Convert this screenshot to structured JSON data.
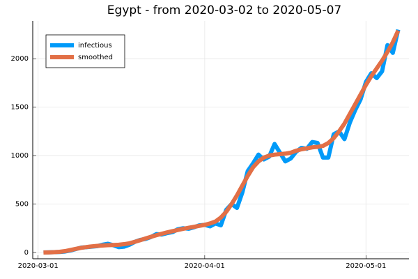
{
  "chart_data": {
    "type": "line",
    "title": "Egypt - from 2020-03-02 to 2020-05-07",
    "x": [
      "2020-03-02",
      "2020-03-03",
      "2020-03-04",
      "2020-03-05",
      "2020-03-06",
      "2020-03-07",
      "2020-03-08",
      "2020-03-09",
      "2020-03-10",
      "2020-03-11",
      "2020-03-12",
      "2020-03-13",
      "2020-03-14",
      "2020-03-15",
      "2020-03-16",
      "2020-03-17",
      "2020-03-18",
      "2020-03-19",
      "2020-03-20",
      "2020-03-21",
      "2020-03-22",
      "2020-03-23",
      "2020-03-24",
      "2020-03-25",
      "2020-03-26",
      "2020-03-27",
      "2020-03-28",
      "2020-03-29",
      "2020-03-30",
      "2020-03-31",
      "2020-04-01",
      "2020-04-02",
      "2020-04-03",
      "2020-04-04",
      "2020-04-05",
      "2020-04-06",
      "2020-04-07",
      "2020-04-08",
      "2020-04-09",
      "2020-04-10",
      "2020-04-11",
      "2020-04-12",
      "2020-04-13",
      "2020-04-14",
      "2020-04-15",
      "2020-04-16",
      "2020-04-17",
      "2020-04-18",
      "2020-04-19",
      "2020-04-20",
      "2020-04-21",
      "2020-04-22",
      "2020-04-23",
      "2020-04-24",
      "2020-04-25",
      "2020-04-26",
      "2020-04-27",
      "2020-04-28",
      "2020-04-29",
      "2020-04-30",
      "2020-05-01",
      "2020-05-02",
      "2020-05-03",
      "2020-05-04",
      "2020-05-05",
      "2020-05-06",
      "2020-05-07"
    ],
    "series": [
      {
        "name": "infectious",
        "color": "#009af9",
        "values": [
          0,
          2,
          3,
          5,
          10,
          20,
          35,
          50,
          55,
          60,
          65,
          80,
          90,
          75,
          55,
          60,
          80,
          110,
          130,
          140,
          160,
          190,
          185,
          200,
          210,
          240,
          250,
          245,
          260,
          280,
          285,
          270,
          300,
          280,
          440,
          500,
          460,
          620,
          840,
          920,
          1010,
          960,
          990,
          1120,
          1030,
          940,
          970,
          1040,
          1080,
          1070,
          1140,
          1130,
          980,
          980,
          1220,
          1250,
          1170,
          1340,
          1470,
          1580,
          1760,
          1850,
          1800,
          1870,
          2140,
          2060,
          2300
        ]
      },
      {
        "name": "smoothed",
        "color": "#e26f46",
        "values": [
          0,
          1,
          3,
          7,
          14,
          25,
          37,
          48,
          56,
          63,
          68,
          72,
          75,
          77,
          80,
          86,
          95,
          110,
          127,
          145,
          162,
          178,
          193,
          207,
          220,
          232,
          244,
          255,
          265,
          275,
          285,
          300,
          320,
          360,
          420,
          500,
          590,
          690,
          790,
          880,
          940,
          980,
          1000,
          1010,
          1015,
          1020,
          1030,
          1050,
          1065,
          1075,
          1085,
          1090,
          1100,
          1130,
          1180,
          1250,
          1330,
          1430,
          1530,
          1630,
          1730,
          1820,
          1900,
          1980,
          2070,
          2170,
          2290
        ]
      }
    ],
    "xlim": [
      "2020-02-29",
      "2020-05-09"
    ],
    "xticks": [
      "2020-03-01",
      "2020-04-01",
      "2020-05-01"
    ],
    "ylim": [
      -65,
      2390
    ],
    "yticks": [
      0,
      500,
      1000,
      1500,
      2000
    ],
    "grid": true,
    "legend": "top-left"
  }
}
